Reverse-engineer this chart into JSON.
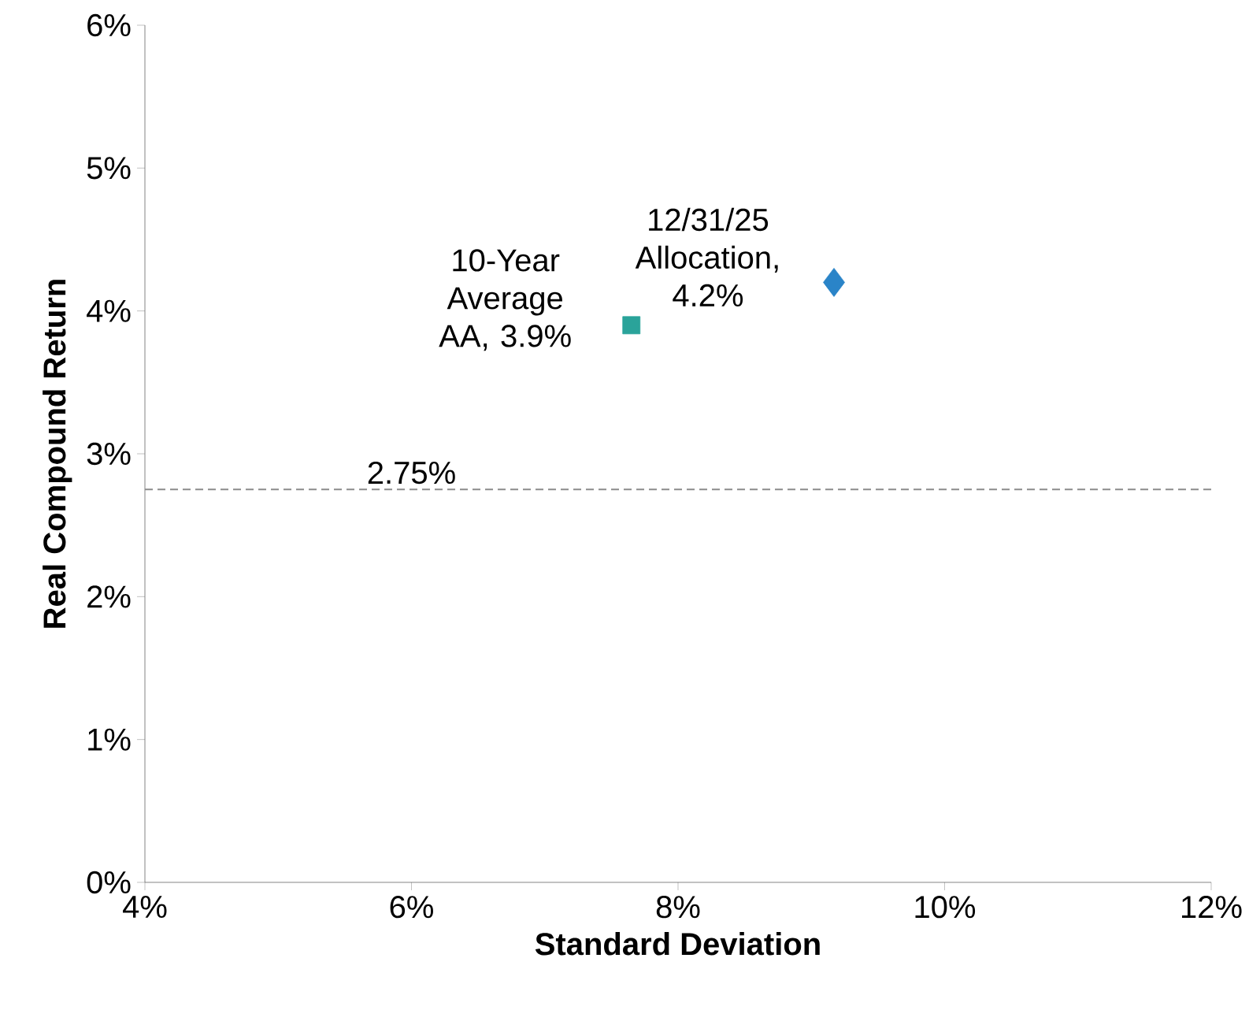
{
  "chart_data": {
    "type": "scatter",
    "xlabel": "Standard Deviation",
    "ylabel": "Real Compound Return",
    "xlim": [
      4,
      12
    ],
    "ylim": [
      0,
      6
    ],
    "xticks": [
      {
        "value": 4,
        "label": "4%"
      },
      {
        "value": 6,
        "label": "6%"
      },
      {
        "value": 8,
        "label": "8%"
      },
      {
        "value": 10,
        "label": "10%"
      },
      {
        "value": 12,
        "label": "12%"
      }
    ],
    "yticks": [
      {
        "value": 0,
        "label": "0%"
      },
      {
        "value": 1,
        "label": "1%"
      },
      {
        "value": 2,
        "label": "2%"
      },
      {
        "value": 3,
        "label": "3%"
      },
      {
        "value": 4,
        "label": "4%"
      },
      {
        "value": 5,
        "label": "5%"
      },
      {
        "value": 6,
        "label": "6%"
      }
    ],
    "series": [
      {
        "x": [
          7.65
        ],
        "values": [
          3.9
        ],
        "color": "#2aa39a",
        "marker": "square"
      },
      {
        "x": [
          9.17
        ],
        "values": [
          4.2
        ],
        "color": "#2a84c8",
        "marker": "diamond"
      }
    ],
    "annotations": [
      {
        "text": "10-Year Average AA, 3.9%",
        "x": 7.65,
        "y": 3.9
      },
      {
        "text": "12/31/25 Allocation, 4.2%",
        "x": 9.17,
        "y": 4.2
      }
    ],
    "ref_lines": [
      {
        "axis": "y",
        "value": 2.75,
        "label": "2.75%",
        "color": "#8c8c8c",
        "line_style": "dashed"
      }
    ],
    "grid": false,
    "legend": false
  }
}
